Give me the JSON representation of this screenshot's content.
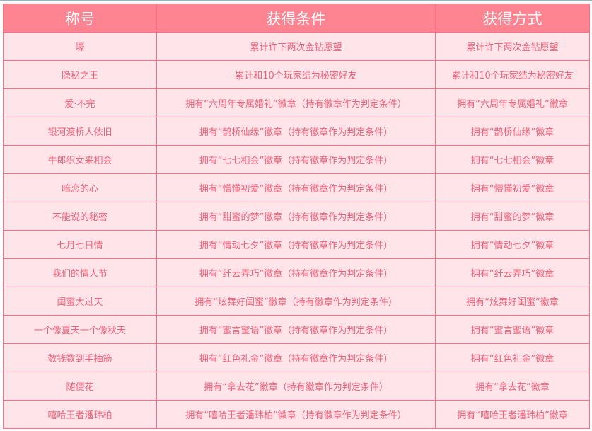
{
  "headers": [
    "称号",
    "获得条件",
    "获得方式"
  ],
  "rows": [
    [
      "壕",
      "累计许下两次金钻愿望",
      "累计许下两次金钻愿望"
    ],
    [
      "隐秘之王",
      "累计和10个玩家结为秘密好友",
      "累计和10个玩家结为秘密好友"
    ],
    [
      "爱·不完",
      "拥有“六周年专属婚礼”徽章（持有徽章作为判定条件）",
      "拥有“六周年专属婚礼”徽章"
    ],
    [
      "银河渡桥人依旧",
      "拥有“鹊桥仙缘”徽章（持有徽章作为判定条件）",
      "拥有“鹊桥仙缘”徽章"
    ],
    [
      "牛郎织女来相会",
      "拥有“七七相会”徽章（持有徽章作为判定条件）",
      "拥有“七七相会”徽章"
    ],
    [
      "暗恋的心",
      "拥有“懵懂初爱”徽章（持有徽章作为判定条件）",
      "拥有“懵懂初爱”徽章"
    ],
    [
      "不能说的秘密",
      "拥有“甜蜜的梦”徽章（持有徽章作为判定条件）",
      "拥有“甜蜜的梦”徽章"
    ],
    [
      "七月七日情",
      "拥有“情动七夕”徽章（持有徽章作为判定条件）",
      "拥有“情动七夕”徽章"
    ],
    [
      "我们的情人节",
      "拥有“纤云弄巧”徽章（持有徽章作为判定条件）",
      "拥有“纤云弄巧”徽章"
    ],
    [
      "闺蜜大过天",
      "拥有“炫舞好闺蜜”徽章（持有徽章作为判定条件）",
      "拥有“炫舞好闺蜜”徽章"
    ],
    [
      "一个像夏天一个像秋天",
      "拥有“蜜言蜜语”徽章（持有徽章作为判定条件）",
      "拥有“蜜言蜜语”徽章"
    ],
    [
      "数钱数到手抽筋",
      "拥有“红色礼金”徽章（持有徽章作为判定条件）",
      "拥有“红色礼金”徽章"
    ],
    [
      "随便花",
      "拥有“拿去花”徽章（持有徽章作为判定条件）",
      "拥有“拿去花”徽章"
    ],
    [
      "嘻哈王者潘玮柏",
      "拥有“嘻哈王者潘玮柏”徽章（持有徽章作为判定条件）",
      "拥有“嘻哈王者潘玮柏”徽章"
    ]
  ],
  "colors": {
    "header_bg": "#ff8491",
    "cell_bg": "#ffe5ea",
    "text": "#f0607a",
    "border": "#ff6f84"
  }
}
